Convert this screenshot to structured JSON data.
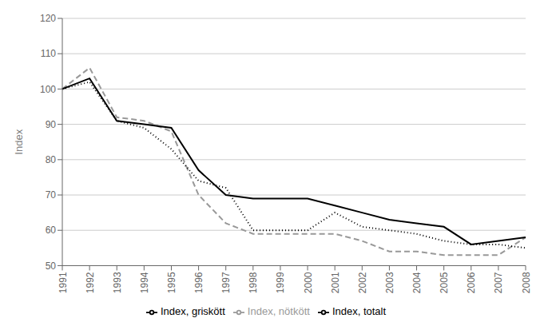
{
  "chart_data": {
    "type": "line",
    "categories": [
      "1991",
      "1992",
      "1993",
      "1994",
      "1995",
      "1996",
      "1997",
      "1998",
      "1999",
      "2000",
      "2001",
      "2002",
      "2003",
      "2004",
      "2005",
      "2006",
      "2007",
      "2008"
    ],
    "series": [
      {
        "name": "Index, nötkött",
        "color": "#999999",
        "line_style": "dashed",
        "values": [
          100,
          106,
          92,
          91,
          88,
          70,
          62,
          59,
          59,
          59,
          59,
          57,
          54,
          54,
          53,
          53,
          53,
          58
        ]
      },
      {
        "name": "Index, totalt",
        "color": "#000000",
        "line_style": "solid",
        "values": [
          100,
          103,
          91,
          90,
          89,
          77,
          70,
          69,
          69,
          69,
          67,
          65,
          63,
          62,
          61,
          56,
          57,
          58
        ]
      },
      {
        "name": "Index, griskött",
        "color": "#000000",
        "line_style": "dotted",
        "values": [
          100,
          102,
          91,
          89,
          83,
          74,
          72,
          60,
          60,
          60,
          65,
          61,
          60,
          59,
          57,
          56,
          56,
          55
        ]
      }
    ],
    "ylabel": "Index",
    "ylim": [
      50,
      120
    ],
    "yticks": [
      50,
      60,
      70,
      80,
      90,
      100,
      110,
      120
    ],
    "grid": true,
    "legend": "bottom"
  }
}
